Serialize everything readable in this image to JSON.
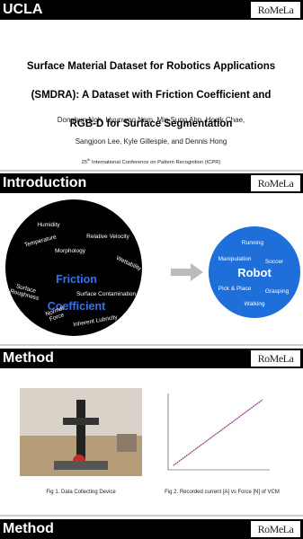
{
  "slides": [
    {
      "header": "UCLA",
      "logo": "RoMeLa",
      "title": [
        "Surface Material Dataset for Robotics Applications",
        "(SMDRA): A Dataset with Friction Coefficient and",
        "RGB-D for Surface Segmentation"
      ],
      "authors": [
        "Donghun Noh, Hyunwoo Nam, Min Sung Ahn, Hosik Chae,",
        "Sangjoon Lee, Kyle Gillespie, and Dennis Hong"
      ],
      "conference": {
        "number": "25",
        "suffix": "th",
        "text": " International Conference on Pattern Recognition (ICPR)"
      }
    },
    {
      "header": "Introduction",
      "logo": "RoMeLa",
      "friction": {
        "center": [
          "Friction",
          "Coefficient"
        ],
        "factors": [
          "Humidity",
          "Relative Velocity",
          "Temperature",
          "Morphology",
          "Wettability",
          "Surface\nRoughness",
          "Surface Contamination",
          "Normal\nForce",
          "Inherent Lubricity"
        ]
      },
      "robot": {
        "center": "Robot",
        "tasks": [
          "Running",
          "Manipulation",
          "Soccer",
          "Pick & Place",
          "Grasping",
          "Walking"
        ]
      }
    },
    {
      "header": "Method",
      "logo": "RoMeLa",
      "captions": [
        "Fig 1. Data Collecting Device",
        "Fig 2. Recorded current [A] vs Force [N] of VCM"
      ]
    },
    {
      "header": "Method",
      "logo": "RoMeLa"
    }
  ]
}
